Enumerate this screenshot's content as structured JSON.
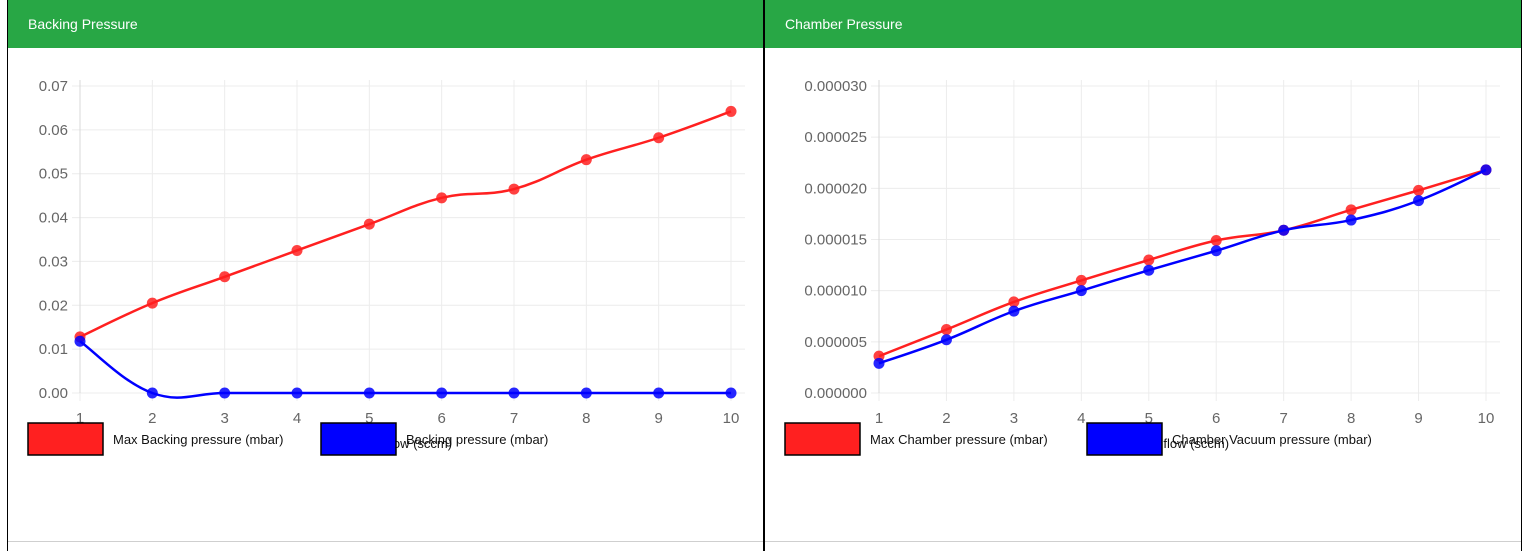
{
  "panels": [
    {
      "title": "Backing Pressure",
      "chart_data": {
        "type": "line",
        "x": [
          1,
          2,
          3,
          4,
          5,
          6,
          7,
          8,
          9,
          10
        ],
        "xlabel": "Gas flow (sccm)",
        "ylabel": "",
        "ylim": [
          0,
          0.07
        ],
        "yticks": [
          "0.00",
          "0.01",
          "0.02",
          "0.03",
          "0.04",
          "0.05",
          "0.06",
          "0.07"
        ],
        "xticks": [
          "1",
          "2",
          "3",
          "4",
          "5",
          "6",
          "7",
          "8",
          "9",
          "10"
        ],
        "grid": true,
        "legend_position": "bottom-left",
        "series": [
          {
            "name": "Max Backing pressure (mbar)",
            "color": "#ff2020",
            "values": [
              0.0128,
              0.0205,
              0.0265,
              0.0325,
              0.0385,
              0.0445,
              0.0465,
              0.0532,
              0.0582,
              0.0642
            ]
          },
          {
            "name": "Backing pressure (mbar)",
            "color": "#0000ff",
            "values": [
              0.0118,
              0.0,
              0.0,
              0.0,
              0.0,
              0.0,
              0.0,
              0.0,
              0.0,
              0.0
            ]
          }
        ]
      }
    },
    {
      "title": "Chamber Pressure",
      "chart_data": {
        "type": "line",
        "x": [
          1,
          2,
          3,
          4,
          5,
          6,
          7,
          8,
          9,
          10
        ],
        "xlabel": "Gas flow (sccm)",
        "ylabel": "",
        "ylim": [
          0,
          3e-05
        ],
        "yticks": [
          "0.000000",
          "0.000005",
          "0.000010",
          "0.000015",
          "0.000020",
          "0.000025",
          "0.000030"
        ],
        "xticks": [
          "1",
          "2",
          "3",
          "4",
          "5",
          "6",
          "7",
          "8",
          "9",
          "10"
        ],
        "grid": true,
        "legend_position": "bottom-left",
        "series": [
          {
            "name": "Max Chamber pressure (mbar)",
            "color": "#ff2020",
            "values": [
              3.6e-06,
              6.2e-06,
              8.9e-06,
              1.1e-05,
              1.3e-05,
              1.49e-05,
              1.59e-05,
              1.79e-05,
              1.98e-05,
              2.18e-05
            ]
          },
          {
            "name": "Chamber Vacuum pressure (mbar)",
            "color": "#0000ff",
            "values": [
              2.9e-06,
              5.2e-06,
              8e-06,
              1e-05,
              1.2e-05,
              1.39e-05,
              1.59e-05,
              1.69e-05,
              1.88e-05,
              2.18e-05
            ]
          }
        ]
      }
    }
  ]
}
